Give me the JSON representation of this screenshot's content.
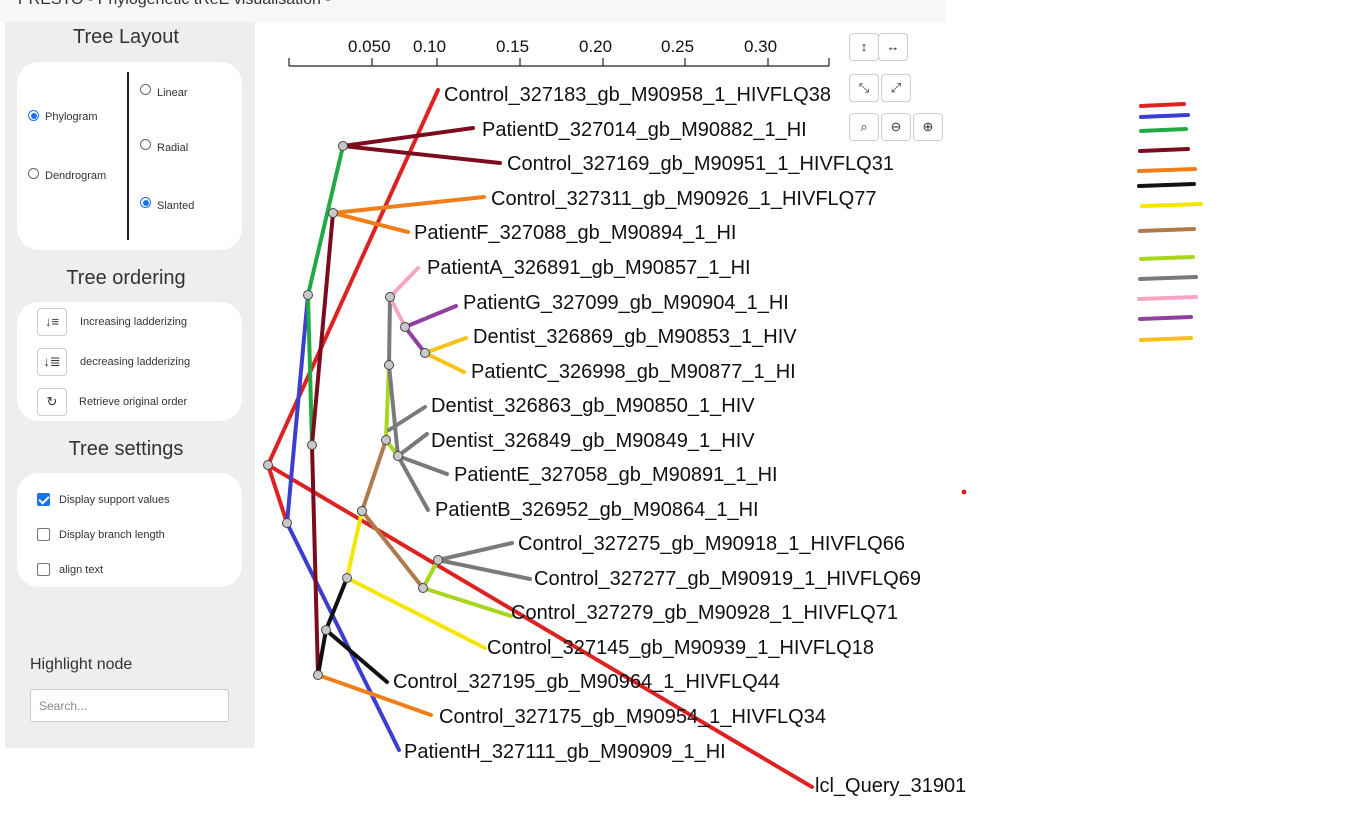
{
  "app": {
    "title": "PRESTO - Phylogenetic tReE visualisation -"
  },
  "sidebar": {
    "layout_title": "Tree Layout",
    "layout_options": [
      {
        "label": "Phylogram",
        "checked": true
      },
      {
        "label": "Dendrogram",
        "checked": false
      }
    ],
    "shape_options": [
      {
        "label": "Linear",
        "checked": false
      },
      {
        "label": "Radial",
        "checked": false
      },
      {
        "label": "Slanted",
        "checked": true
      }
    ],
    "ordering_title": "Tree ordering",
    "ordering_buttons": [
      {
        "label": "Increasing ladderizing",
        "icon": "sort-ascending-icon"
      },
      {
        "label": "decreasing ladderizing",
        "icon": "sort-descending-icon"
      },
      {
        "label": "Retrieve original order",
        "icon": "refresh-icon"
      }
    ],
    "settings_title": "Tree settings",
    "settings": [
      {
        "label": "Display support values",
        "checked": true
      },
      {
        "label": "Display branch length",
        "checked": false
      },
      {
        "label": "align text",
        "checked": false
      }
    ],
    "highlight_title": "Highlight node",
    "search_placeholder": "Search..."
  },
  "toolbar": [
    {
      "name": "expand-vertical-button",
      "icon": "arrows-vertical-icon",
      "glyph": "↕"
    },
    {
      "name": "expand-horizontal-button",
      "icon": "arrows-horizontal-icon",
      "glyph": "↔"
    },
    {
      "name": "compress-vertical-button",
      "icon": "compress-icon",
      "glyph": "⤡"
    },
    {
      "name": "compress-horizontal-button",
      "icon": "compress-icon",
      "glyph": "⤢"
    },
    {
      "name": "zoom-reset-button",
      "icon": "search-icon",
      "glyph": "⌕"
    },
    {
      "name": "zoom-out-button",
      "icon": "zoom-out-icon",
      "glyph": "⊖"
    },
    {
      "name": "zoom-in-button",
      "icon": "zoom-in-icon",
      "glyph": "⊕"
    }
  ],
  "axis": {
    "ticks": [
      "0.050",
      "0.10",
      "0.15",
      "0.20",
      "0.25",
      "0.30"
    ]
  },
  "leaves": [
    "Control_327183_gb_M90958_1_HIVFLQ38",
    "PatientD_327014_gb_M90882_1_HI",
    "Control_327169_gb_M90951_1_HIVFLQ31",
    "Control_327311_gb_M90926_1_HIVFLQ77",
    "PatientF_327088_gb_M90894_1_HI",
    "PatientA_326891_gb_M90857_1_HI",
    "PatientG_327099_gb_M90904_1_HI",
    "Dentist_326869_gb_M90853_1_HIV",
    "PatientC_326998_gb_M90877_1_HI",
    "Dentist_326863_gb_M90850_1_HIV",
    "Dentist_326849_gb_M90849_1_HIV",
    "PatientE_327058_gb_M90891_1_HI",
    "PatientB_326952_gb_M90864_1_HI",
    "Control_327275_gb_M90918_1_HIVFLQ66",
    "Control_327277_gb_M90919_1_HIVFLQ69",
    "Control_327279_gb_M90928_1_HIVFLQ71",
    "Control_327145_gb_M90939_1_HIVFLQ18",
    "Control_327195_gb_M90964_1_HIVFLQ44",
    "Control_327175_gb_M90954_1_HIVFLQ34",
    "PatientH_327111_gb_M90909_1_HI",
    "lcl_Query_31901"
  ],
  "colors": {
    "red": "#dd2222",
    "blue": "#3b3fcf",
    "green": "#22aa44",
    "maroon": "#7a0c1e",
    "orange": "#f07f1a",
    "black": "#111111",
    "yellow": "#f5e600",
    "brown": "#b07a4a",
    "lime": "#a6d61e",
    "gray": "#7a7a7a",
    "pink": "#f4a6c4",
    "purple": "#9040a0",
    "gold": "#f5c21a"
  },
  "legend_colors": [
    "#dd2222",
    "#3b3fcf",
    "#22aa44",
    "#7a0c1e",
    "#f07f1a",
    "#111111",
    "#f5e600",
    "#b07a4a",
    "#a6d61e",
    "#7a7a7a",
    "#f4a6c4",
    "#9040a0",
    "#f5c21a"
  ]
}
